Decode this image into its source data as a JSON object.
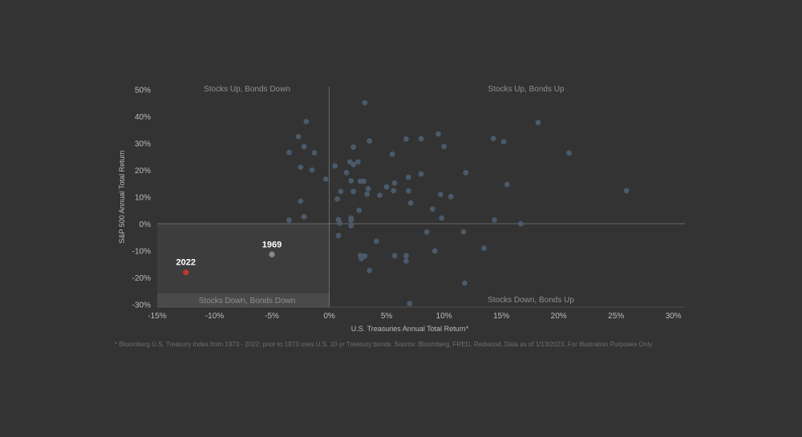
{
  "chart_data": {
    "type": "scatter",
    "title": "",
    "xlabel": "U.S. Treasuries Annual Total Return*",
    "ylabel": "S&P 500 Annual Total Return",
    "xlim": [
      -15,
      31
    ],
    "ylim": [
      -31,
      51
    ],
    "x_ticks": [
      "-15%",
      "-10%",
      "-5%",
      "0%",
      "5%",
      "10%",
      "15%",
      "20%",
      "25%",
      "30%"
    ],
    "x_tick_values": [
      -15,
      -10,
      -5,
      0,
      5,
      10,
      15,
      20,
      25,
      30
    ],
    "y_ticks": [
      "50%",
      "40%",
      "30%",
      "20%",
      "10%",
      "0%",
      "-10%",
      "-20%",
      "-30%"
    ],
    "y_tick_values": [
      50,
      40,
      30,
      20,
      10,
      0,
      -10,
      -20,
      -30
    ],
    "grid": false,
    "quadrant_labels": {
      "top_left": "Stocks Up, Bonds Down",
      "top_right": "Stocks Up, Bonds Up",
      "bottom_left": "Stocks Down, Bonds Down",
      "bottom_right": "Stocks Down, Bonds Up"
    },
    "highlights": [
      {
        "label": "2022",
        "x": -12.5,
        "y": -18.1,
        "color": "#c0392b"
      },
      {
        "label": "1969",
        "x": -5.0,
        "y": -11.4,
        "color": "#888888"
      }
    ],
    "point_color": "#4a5a6a",
    "points": [
      [
        -3.5,
        26.5
      ],
      [
        -3.5,
        1.3
      ],
      [
        -2.7,
        32.4
      ],
      [
        -2.5,
        8.4
      ],
      [
        -2.5,
        21.0
      ],
      [
        -2.2,
        28.7
      ],
      [
        -2.2,
        2.6
      ],
      [
        -2.0,
        38.0
      ],
      [
        -1.5,
        20.0
      ],
      [
        -1.3,
        26.4
      ],
      [
        -0.3,
        16.6
      ],
      [
        0.5,
        21.5
      ],
      [
        0.7,
        9.2
      ],
      [
        0.8,
        1.5
      ],
      [
        0.8,
        -4.4
      ],
      [
        0.9,
        0.2
      ],
      [
        1.0,
        12.0
      ],
      [
        1.5,
        19.0
      ],
      [
        1.8,
        23.0
      ],
      [
        1.9,
        16.0
      ],
      [
        1.9,
        2.1
      ],
      [
        1.9,
        1.3
      ],
      [
        1.9,
        -0.7
      ],
      [
        2.1,
        28.5
      ],
      [
        2.1,
        22.0
      ],
      [
        2.1,
        12.0
      ],
      [
        2.5,
        23.0
      ],
      [
        2.6,
        5.0
      ],
      [
        2.7,
        15.8
      ],
      [
        2.7,
        -11.8
      ],
      [
        2.8,
        -13.0
      ],
      [
        3.0,
        15.8
      ],
      [
        3.1,
        -12.0
      ],
      [
        3.1,
        45.0
      ],
      [
        3.3,
        11.0
      ],
      [
        3.4,
        13.0
      ],
      [
        3.5,
        30.8
      ],
      [
        3.5,
        -17.4
      ],
      [
        4.1,
        -6.5
      ],
      [
        4.4,
        10.6
      ],
      [
        5.0,
        13.7
      ],
      [
        5.5,
        25.9
      ],
      [
        5.6,
        12.3
      ],
      [
        5.7,
        15.1
      ],
      [
        5.7,
        -11.9
      ],
      [
        6.7,
        31.5
      ],
      [
        6.7,
        -11.9
      ],
      [
        6.7,
        -13.8
      ],
      [
        6.9,
        17.3
      ],
      [
        6.9,
        12.2
      ],
      [
        7.0,
        -29.7
      ],
      [
        7.1,
        7.7
      ],
      [
        8.0,
        31.6
      ],
      [
        8.0,
        18.5
      ],
      [
        8.5,
        -3.1
      ],
      [
        9.0,
        5.5
      ],
      [
        9.2,
        -10.1
      ],
      [
        9.5,
        33.4
      ],
      [
        9.7,
        10.9
      ],
      [
        9.8,
        2.1
      ],
      [
        10.0,
        28.7
      ],
      [
        10.6,
        10.1
      ],
      [
        11.7,
        -3.0
      ],
      [
        11.8,
        -22.1
      ],
      [
        11.9,
        19.0
      ],
      [
        13.5,
        -9.1
      ],
      [
        14.3,
        31.7
      ],
      [
        14.4,
        1.4
      ],
      [
        15.2,
        30.5
      ],
      [
        15.5,
        14.6
      ],
      [
        16.7,
        0.0
      ],
      [
        18.2,
        37.6
      ],
      [
        20.9,
        26.3
      ],
      [
        25.9,
        12.3
      ]
    ]
  },
  "footnote": "*  Bloomberg U.S. Treasury Index from 1973 - 2022; prior to 1973 uses U.S. 10-yr Treasury bonds. Source: Bloomberg, FRED, Redwood. Data as of 1/13/2023. For Illustration Purposes Only."
}
